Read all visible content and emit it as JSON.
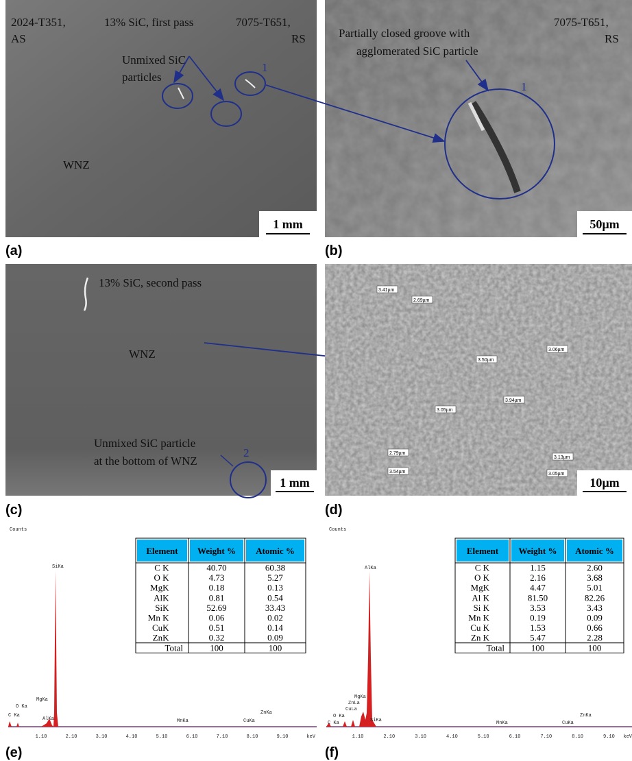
{
  "panels": {
    "a": {
      "label": "(a)",
      "alloy_left": "2024-T351,",
      "side_left": "AS",
      "condition": "13% SiC, first pass",
      "alloy_right": "7075-T651,",
      "side_right": "RS",
      "note_1": "Unmixed SiC",
      "note_2": "particles",
      "marker": "1",
      "zone": "WNZ",
      "scale_bar": "1 mm"
    },
    "b": {
      "label": "(b)",
      "alloy_right": "7075-T651,",
      "side_right": "RS",
      "note_1": "Partially closed groove with",
      "note_2": "agglomerated SiC particle",
      "marker": "1",
      "scale_bar": "50µm"
    },
    "c": {
      "label": "(c)",
      "condition": "13% SiC, second pass",
      "zone": "WNZ",
      "note_1": "Unmixed SiC particle",
      "note_2": "at the bottom of WNZ",
      "marker": "2",
      "scale_bar": "1 mm"
    },
    "d": {
      "label": "(d)",
      "measurements": [
        "3.41µm",
        "2.69µm",
        "3.06µm",
        "3.50µm",
        "3.94µm",
        "3.05µm",
        "2.79µm",
        "3.54µm",
        "3.13µm",
        "3.05µm"
      ],
      "scale_bar": "10µm"
    },
    "e": {
      "label": "(e)",
      "axis_title": "Counts",
      "x_ticks": [
        "1.10",
        "2.10",
        "3.10",
        "4.10",
        "5.10",
        "6.10",
        "7.10",
        "8.10",
        "9.10"
      ],
      "x_unit": "keV",
      "peaks": [
        "SiKa",
        "MgKa",
        "O Ka",
        "C Ka",
        "AlKa",
        "MnKa",
        "CuKa",
        "ZnKa"
      ],
      "table": {
        "header": [
          "Element",
          "Weight %",
          "Atomic %"
        ],
        "rows": [
          [
            "C K",
            "40.70",
            "60.38"
          ],
          [
            "O K",
            "4.73",
            "5.27"
          ],
          [
            "MgK",
            "0.18",
            "0.13"
          ],
          [
            "AlK",
            "0.81",
            "0.54"
          ],
          [
            "SiK",
            "52.69",
            "33.43"
          ],
          [
            "Mn K",
            "0.06",
            "0.02"
          ],
          [
            "CuK",
            "0.51",
            "0.14"
          ],
          [
            "ZnK",
            "0.32",
            "0.09"
          ],
          [
            "Total",
            "100",
            "100"
          ]
        ]
      }
    },
    "f": {
      "label": "(f)",
      "axis_title": "Counts",
      "x_ticks": [
        "1.10",
        "2.10",
        "3.10",
        "4.10",
        "5.10",
        "6.10",
        "7.10",
        "8.10",
        "9.10"
      ],
      "x_unit": "keV",
      "peaks": [
        "AlKa",
        "MgKa",
        "ZnLa",
        "CuLa",
        "O Ka",
        "C Ka",
        "SiKa",
        "MnKa",
        "CuKa",
        "ZnKa"
      ],
      "table": {
        "header": [
          "Element",
          "Weight %",
          "Atomic %"
        ],
        "rows": [
          [
            "C K",
            "1.15",
            "2.60"
          ],
          [
            "O K",
            "2.16",
            "3.68"
          ],
          [
            "MgK",
            "4.47",
            "5.01"
          ],
          [
            "Al K",
            "81.50",
            "82.26"
          ],
          [
            "Si K",
            "3.53",
            "3.43"
          ],
          [
            "Mn K",
            "0.19",
            "0.09"
          ],
          [
            "Cu K",
            "1.53",
            "0.66"
          ],
          [
            "Zn K",
            "5.47",
            "2.28"
          ],
          [
            "Total",
            "100",
            "100"
          ]
        ]
      }
    }
  }
}
